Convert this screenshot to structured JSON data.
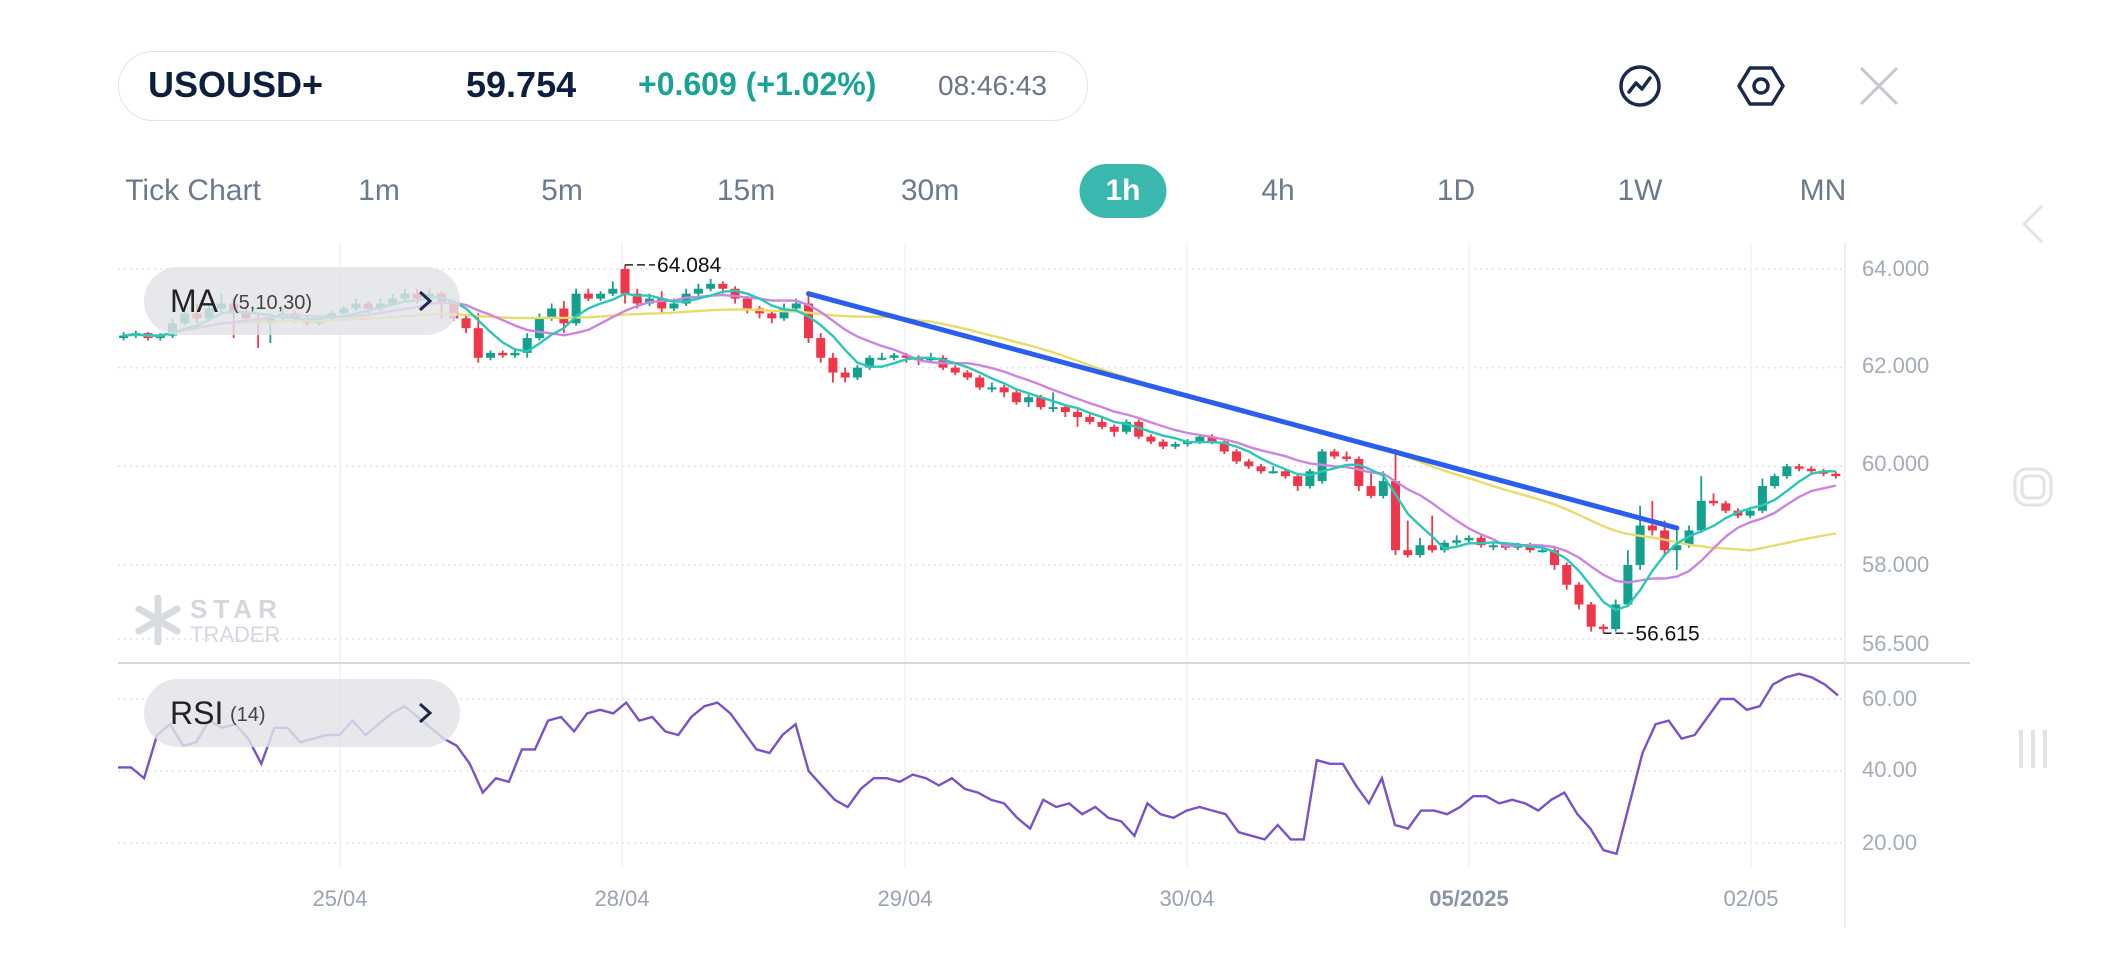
{
  "header": {
    "symbol": "USOUSD+",
    "price": "59.754",
    "change": "+0.609",
    "change_pct": "(+1.02%)",
    "time": "08:46:43",
    "icons": [
      "indicator-chart-icon",
      "settings-hexagon-icon",
      "close-icon"
    ]
  },
  "timeframes": {
    "items": [
      "Tick Chart",
      "1m",
      "5m",
      "15m",
      "30m",
      "1h",
      "4h",
      "1D",
      "1W",
      "MN"
    ],
    "active": "1h"
  },
  "overlays": {
    "ma_label": "MA",
    "ma_params": "(5,10,30)",
    "rsi_label": "RSI",
    "rsi_params": "(14)"
  },
  "watermark": {
    "line1": "STAR",
    "line2": "TRADER"
  },
  "side_icons": [
    "chevron-left-icon",
    "square-icon",
    "bars-icon"
  ],
  "colors": {
    "up": "#13a08e",
    "down": "#f0364a",
    "ma5": "#2cc7b6",
    "ma10": "#cc85e0",
    "ma30": "#e9dc6c",
    "trendline": "#2a5ef0",
    "rsi": "#7b52c7",
    "accent": "#3ab8ae"
  },
  "chart_data": [
    {
      "type": "candlestick",
      "title": "",
      "y_ticks": [
        "64.000",
        "62.000",
        "60.000",
        "58.000",
        "56.500"
      ],
      "ylim": [
        56.4,
        64.3
      ],
      "x_ticks": [
        "25/04",
        "28/04",
        "29/04",
        "30/04",
        "05/2025",
        "02/05"
      ],
      "x_tick_candle_index": [
        18,
        41,
        64,
        87,
        110,
        133
      ],
      "grid": true,
      "high_label": "64.084",
      "high_index": 41,
      "low_label": "56.615",
      "low_index": 121,
      "moving_averages": [
        5,
        10,
        30
      ],
      "trendline": {
        "start": {
          "index": 56,
          "price": 63.5
        },
        "end": {
          "index": 127,
          "price": 58.75
        }
      },
      "candles_ohlc": [
        [
          62.6,
          62.72,
          62.55,
          62.65
        ],
        [
          62.65,
          62.75,
          62.6,
          62.7
        ],
        [
          62.7,
          62.72,
          62.55,
          62.6
        ],
        [
          62.6,
          62.7,
          62.55,
          62.65
        ],
        [
          62.65,
          63.0,
          62.6,
          62.9
        ],
        [
          62.9,
          63.2,
          62.85,
          63.1
        ],
        [
          63.1,
          63.3,
          62.9,
          63.0
        ],
        [
          63.0,
          63.3,
          62.95,
          63.2
        ],
        [
          63.2,
          63.5,
          63.1,
          63.3
        ],
        [
          63.3,
          63.4,
          62.6,
          63.1
        ],
        [
          63.1,
          63.2,
          62.9,
          63.0
        ],
        [
          63.0,
          63.1,
          62.4,
          62.9
        ],
        [
          62.9,
          63.1,
          62.5,
          63.0
        ],
        [
          63.0,
          63.2,
          62.95,
          63.1
        ],
        [
          63.1,
          63.15,
          62.9,
          63.0
        ],
        [
          63.0,
          63.05,
          62.85,
          62.9
        ],
        [
          62.9,
          63.05,
          62.85,
          63.0
        ],
        [
          63.0,
          63.15,
          62.95,
          63.1
        ],
        [
          63.1,
          63.25,
          63.05,
          63.2
        ],
        [
          63.2,
          63.4,
          63.15,
          63.3
        ],
        [
          63.3,
          63.35,
          63.1,
          63.2
        ],
        [
          63.2,
          63.4,
          63.15,
          63.3
        ],
        [
          63.3,
          63.5,
          63.25,
          63.4
        ],
        [
          63.4,
          63.6,
          63.35,
          63.5
        ],
        [
          63.5,
          63.6,
          63.3,
          63.4
        ],
        [
          63.4,
          63.6,
          63.35,
          63.5
        ],
        [
          63.5,
          63.55,
          63.0,
          63.3
        ],
        [
          63.3,
          63.35,
          62.95,
          63.0
        ],
        [
          63.0,
          63.05,
          62.7,
          62.8
        ],
        [
          62.8,
          63.1,
          62.1,
          62.2
        ],
        [
          62.2,
          62.35,
          62.15,
          62.3
        ],
        [
          62.3,
          62.35,
          62.2,
          62.25
        ],
        [
          62.25,
          62.4,
          62.2,
          62.3
        ],
        [
          62.3,
          62.7,
          62.2,
          62.6
        ],
        [
          62.6,
          63.1,
          62.55,
          63.0
        ],
        [
          63.0,
          63.3,
          62.95,
          63.2
        ],
        [
          63.2,
          63.35,
          62.7,
          62.9
        ],
        [
          62.9,
          63.6,
          62.85,
          63.5
        ],
        [
          63.5,
          63.6,
          63.35,
          63.4
        ],
        [
          63.4,
          63.55,
          63.35,
          63.5
        ],
        [
          63.5,
          63.75,
          63.45,
          63.6
        ],
        [
          64.0,
          64.084,
          63.3,
          63.5
        ],
        [
          63.5,
          63.6,
          63.2,
          63.3
        ],
        [
          63.3,
          63.5,
          63.25,
          63.4
        ],
        [
          63.4,
          63.55,
          63.1,
          63.2
        ],
        [
          63.2,
          63.4,
          63.15,
          63.3
        ],
        [
          63.3,
          63.6,
          63.25,
          63.5
        ],
        [
          63.5,
          63.7,
          63.45,
          63.6
        ],
        [
          63.6,
          63.8,
          63.55,
          63.7
        ],
        [
          63.7,
          63.75,
          63.5,
          63.6
        ],
        [
          63.6,
          63.65,
          63.3,
          63.4
        ],
        [
          63.4,
          63.45,
          63.1,
          63.2
        ],
        [
          63.2,
          63.25,
          63.0,
          63.1
        ],
        [
          63.1,
          63.15,
          62.9,
          63.0
        ],
        [
          63.0,
          63.3,
          62.95,
          63.2
        ],
        [
          63.2,
          63.4,
          63.15,
          63.3
        ],
        [
          63.3,
          63.5,
          62.5,
          62.6
        ],
        [
          62.6,
          62.7,
          62.1,
          62.2
        ],
        [
          62.2,
          62.3,
          61.7,
          61.9
        ],
        [
          61.9,
          62.0,
          61.7,
          61.8
        ],
        [
          61.8,
          62.05,
          61.75,
          62.0
        ],
        [
          62.0,
          62.25,
          61.95,
          62.2
        ],
        [
          62.2,
          62.3,
          62.15,
          62.2
        ],
        [
          62.2,
          62.3,
          62.15,
          62.25
        ],
        [
          62.25,
          62.3,
          62.1,
          62.2
        ],
        [
          62.2,
          62.25,
          62.05,
          62.15
        ],
        [
          62.15,
          62.3,
          62.1,
          62.2
        ],
        [
          62.2,
          62.25,
          61.95,
          62.0
        ],
        [
          62.0,
          62.05,
          61.85,
          61.9
        ],
        [
          61.9,
          61.95,
          61.75,
          61.8
        ],
        [
          61.8,
          61.85,
          61.55,
          61.6
        ],
        [
          61.6,
          61.7,
          61.5,
          61.6
        ],
        [
          61.6,
          61.65,
          61.4,
          61.5
        ],
        [
          61.5,
          61.55,
          61.25,
          61.3
        ],
        [
          61.3,
          61.45,
          61.2,
          61.4
        ],
        [
          61.4,
          61.45,
          61.15,
          61.2
        ],
        [
          61.2,
          61.5,
          61.1,
          61.2
        ],
        [
          61.2,
          61.25,
          61.0,
          61.1
        ],
        [
          61.1,
          61.15,
          60.8,
          61.0
        ],
        [
          61.0,
          61.05,
          60.85,
          60.9
        ],
        [
          60.9,
          61.0,
          60.75,
          60.8
        ],
        [
          60.8,
          60.85,
          60.6,
          60.7
        ],
        [
          60.7,
          60.95,
          60.65,
          60.9
        ],
        [
          60.9,
          60.95,
          60.55,
          60.6
        ],
        [
          60.6,
          60.65,
          60.45,
          60.5
        ],
        [
          60.5,
          60.55,
          60.35,
          60.4
        ],
        [
          60.4,
          60.5,
          60.35,
          60.45
        ],
        [
          60.45,
          60.55,
          60.4,
          60.5
        ],
        [
          60.5,
          60.65,
          60.45,
          60.6
        ],
        [
          60.6,
          60.65,
          60.45,
          60.5
        ],
        [
          60.5,
          60.55,
          60.25,
          60.3
        ],
        [
          60.3,
          60.35,
          60.05,
          60.1
        ],
        [
          60.1,
          60.15,
          59.95,
          60.0
        ],
        [
          60.0,
          60.05,
          59.85,
          59.9
        ],
        [
          59.9,
          60.0,
          59.85,
          59.9
        ],
        [
          59.9,
          59.95,
          59.75,
          59.8
        ],
        [
          59.8,
          59.85,
          59.5,
          59.6
        ],
        [
          59.6,
          59.95,
          59.55,
          59.9
        ],
        [
          59.7,
          60.35,
          59.65,
          60.3
        ],
        [
          60.3,
          60.35,
          60.15,
          60.2
        ],
        [
          60.2,
          60.3,
          60.1,
          60.15
        ],
        [
          60.15,
          60.2,
          59.5,
          59.6
        ],
        [
          59.6,
          59.9,
          59.35,
          59.4
        ],
        [
          59.4,
          59.9,
          59.35,
          59.7
        ],
        [
          59.7,
          60.35,
          58.2,
          58.3
        ],
        [
          58.3,
          58.9,
          58.15,
          58.2
        ],
        [
          58.2,
          58.55,
          58.15,
          58.4
        ],
        [
          58.4,
          59.0,
          58.25,
          58.3
        ],
        [
          58.3,
          58.5,
          58.25,
          58.45
        ],
        [
          58.45,
          58.6,
          58.4,
          58.5
        ],
        [
          58.5,
          58.6,
          58.45,
          58.55
        ],
        [
          58.55,
          58.6,
          58.35,
          58.4
        ],
        [
          58.4,
          58.45,
          58.3,
          58.4
        ],
        [
          58.4,
          58.45,
          58.3,
          58.35
        ],
        [
          58.35,
          58.45,
          58.3,
          58.4
        ],
        [
          58.4,
          58.45,
          58.25,
          58.3
        ],
        [
          58.3,
          58.4,
          58.25,
          58.3
        ],
        [
          58.3,
          58.35,
          57.9,
          58.0
        ],
        [
          58.0,
          58.05,
          57.5,
          57.6
        ],
        [
          57.6,
          57.65,
          57.1,
          57.2
        ],
        [
          57.2,
          57.25,
          56.65,
          56.75
        ],
        [
          56.75,
          56.8,
          56.615,
          56.7
        ],
        [
          56.7,
          57.3,
          56.65,
          57.2
        ],
        [
          57.2,
          58.3,
          57.15,
          58.0
        ],
        [
          58.0,
          59.2,
          57.9,
          58.8
        ],
        [
          58.8,
          59.3,
          58.6,
          58.7
        ],
        [
          58.7,
          58.9,
          58.2,
          58.3
        ],
        [
          58.3,
          58.7,
          57.9,
          58.4
        ],
        [
          58.4,
          58.8,
          58.35,
          58.7
        ],
        [
          58.7,
          59.8,
          58.65,
          59.3
        ],
        [
          59.3,
          59.45,
          59.2,
          59.25
        ],
        [
          59.25,
          59.3,
          59.05,
          59.1
        ],
        [
          59.1,
          59.15,
          58.95,
          59.0
        ],
        [
          59.0,
          59.15,
          58.95,
          59.1
        ],
        [
          59.1,
          59.75,
          59.05,
          59.6
        ],
        [
          59.6,
          59.85,
          59.55,
          59.8
        ],
        [
          59.8,
          60.05,
          59.75,
          60.0
        ],
        [
          60.0,
          60.05,
          59.9,
          59.95
        ],
        [
          59.95,
          60.0,
          59.85,
          59.9
        ],
        [
          59.9,
          59.95,
          59.8,
          59.85
        ],
        [
          59.85,
          59.9,
          59.75,
          59.8
        ]
      ]
    },
    {
      "type": "line",
      "title": "RSI (14)",
      "y_ticks": [
        "60.00",
        "40.00",
        "20.00"
      ],
      "ylim": [
        12,
        70
      ],
      "grid": true,
      "values": [
        41,
        41,
        38,
        50,
        53,
        47,
        48,
        54,
        52,
        53,
        49,
        42,
        52,
        52,
        48,
        49,
        50,
        50,
        54,
        50,
        53,
        56,
        58,
        55,
        52,
        49,
        47,
        42,
        34,
        38,
        37,
        46,
        46,
        54,
        55,
        51,
        56,
        57,
        56,
        59,
        54,
        55,
        51,
        50,
        55,
        58,
        59,
        56,
        51,
        46,
        45,
        50,
        53,
        40,
        36,
        32,
        30,
        35,
        38,
        38,
        37,
        39,
        38,
        36,
        38,
        35,
        34,
        32,
        31,
        27,
        24,
        32,
        30,
        31,
        28,
        30,
        27,
        26,
        22,
        31,
        28,
        27,
        29,
        30,
        29,
        28,
        23,
        22,
        21,
        25,
        21,
        21,
        43,
        42,
        42,
        36,
        31,
        38,
        25,
        24,
        29,
        29,
        28,
        30,
        33,
        33,
        31,
        32,
        31,
        29,
        32,
        34,
        28,
        24,
        18,
        17,
        31,
        45,
        53,
        54,
        49,
        50,
        55,
        60,
        60,
        57,
        58,
        64,
        66,
        67,
        66,
        64,
        61
      ]
    }
  ]
}
